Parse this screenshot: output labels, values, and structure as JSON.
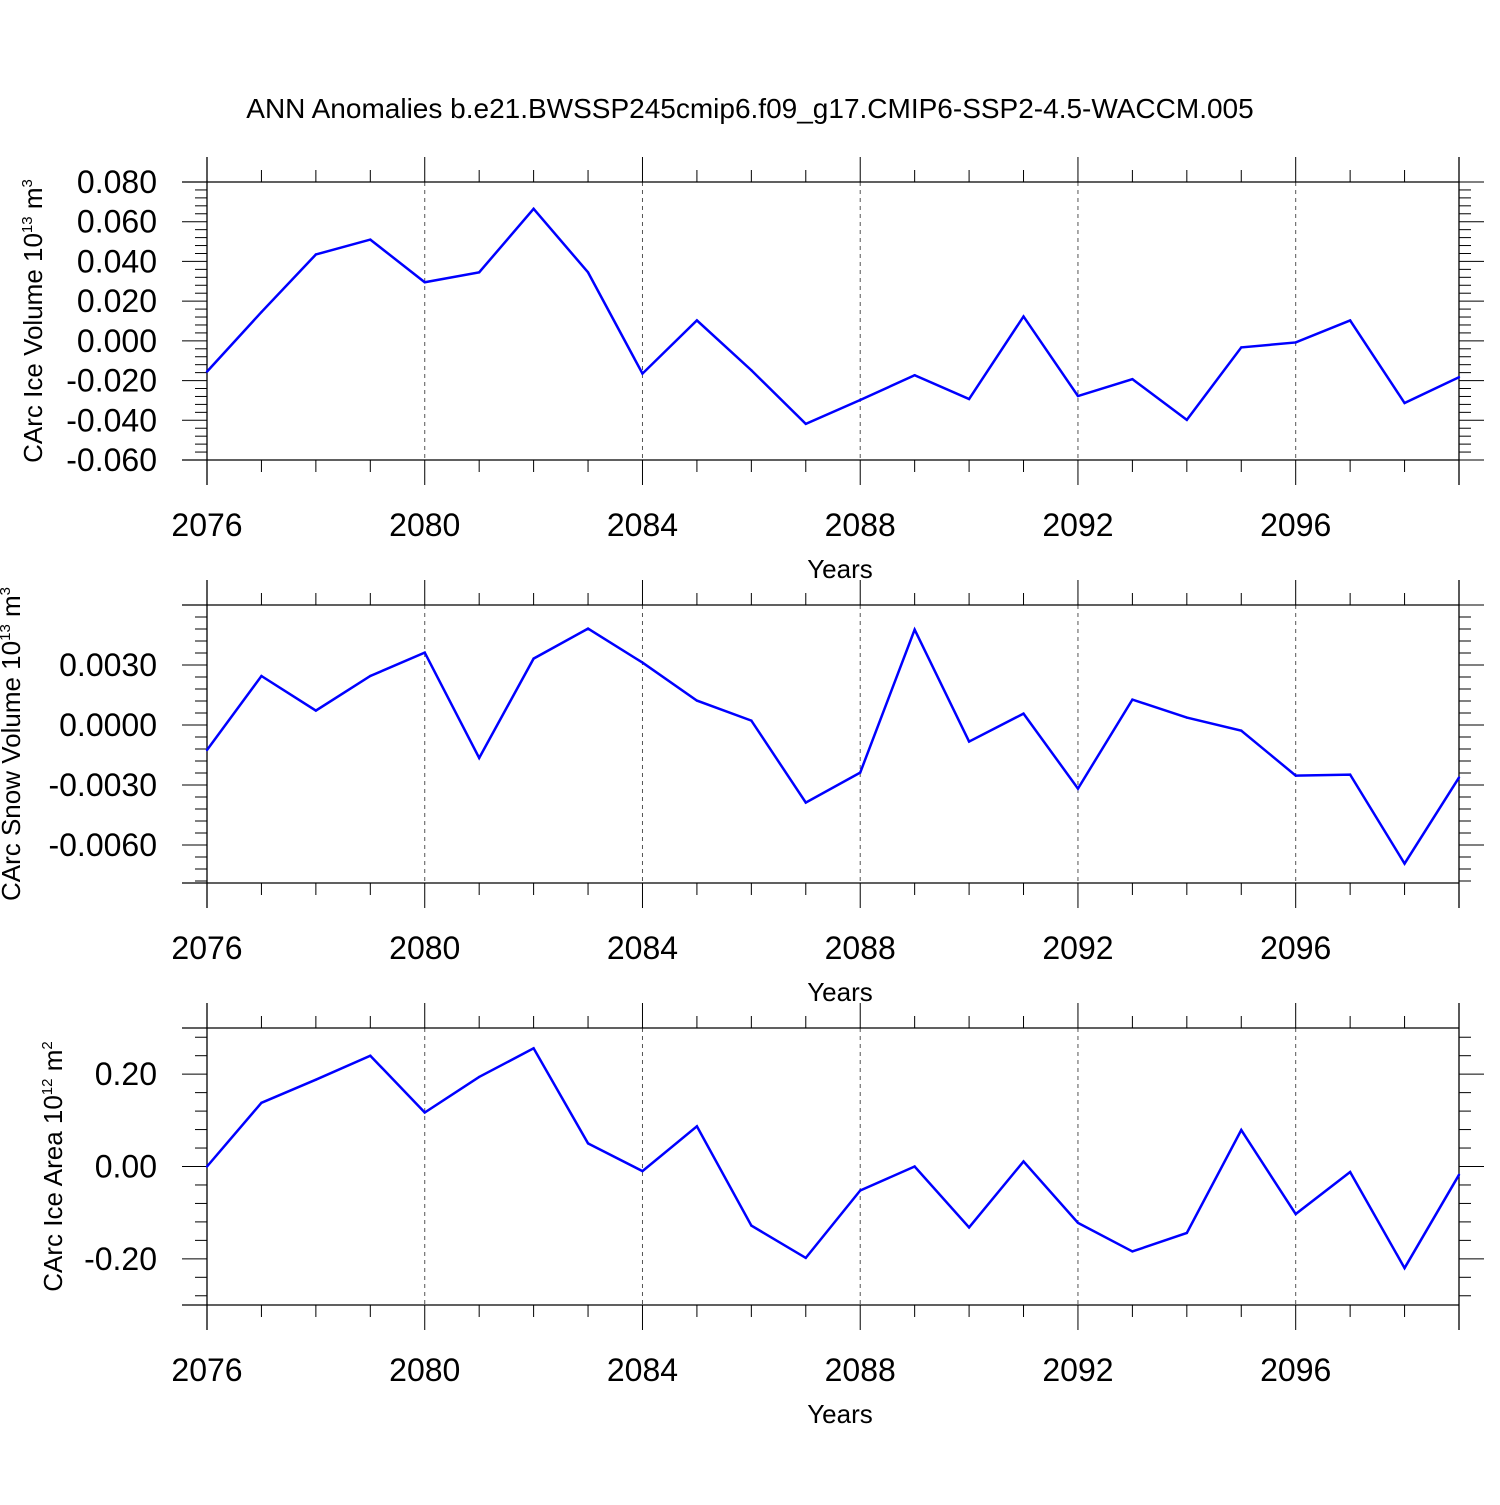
{
  "figure_title": "ANN Anomalies b.e21.BWSSP245cmip6.f09_g17.CMIP6-SSP2-4.5-WACCM.005",
  "colors": {
    "line": "#0000ff",
    "axis": "#000000",
    "grid": "#555555"
  },
  "chart_data": [
    {
      "type": "line",
      "title": "",
      "xlabel": "Years",
      "ylabel": {
        "main": "CArc Ice Volume 10",
        "sup": "13",
        "unit": " m",
        "unit_sup": "3"
      },
      "x": [
        2076,
        2077,
        2078,
        2079,
        2080,
        2081,
        2082,
        2083,
        2084,
        2085,
        2086,
        2087,
        2088,
        2089,
        2090,
        2091,
        2092,
        2093,
        2094,
        2095,
        2096,
        2097,
        2098,
        2099
      ],
      "values": [
        -0.0155,
        0.0145,
        0.0435,
        0.051,
        0.0295,
        0.0345,
        0.0665,
        0.0345,
        -0.0165,
        0.0103,
        -0.0148,
        -0.0418,
        -0.0298,
        -0.0173,
        -0.0293,
        0.0123,
        -0.0278,
        -0.0193,
        -0.0398,
        -0.0033,
        -0.0008,
        0.0103,
        -0.0313,
        -0.0183
      ],
      "xlim": [
        2076,
        2099
      ],
      "ylim": [
        -0.06,
        0.08
      ],
      "x_ticks": [
        2076,
        2080,
        2084,
        2088,
        2092,
        2096
      ],
      "x_tick_labels": [
        "2076",
        "2080",
        "2084",
        "2088",
        "2092",
        "2096"
      ],
      "y_ticks": [
        -0.06,
        -0.04,
        -0.02,
        0.0,
        0.02,
        0.04,
        0.06,
        0.08
      ],
      "y_tick_labels": [
        "-0.060",
        "-0.040",
        "-0.020",
        "0.000",
        "0.020",
        "0.040",
        "0.060",
        "0.080"
      ],
      "grid": "vertical dashed at major x ticks"
    },
    {
      "type": "line",
      "title": "",
      "xlabel": "Years",
      "ylabel": {
        "main": "CArc Snow Volume 10",
        "sup": "13",
        "unit": " m",
        "unit_sup": "3"
      },
      "x": [
        2076,
        2077,
        2078,
        2079,
        2080,
        2081,
        2082,
        2083,
        2084,
        2085,
        2086,
        2087,
        2088,
        2089,
        2090,
        2091,
        2092,
        2093,
        2094,
        2095,
        2096,
        2097,
        2098,
        2099
      ],
      "values": [
        -0.00125,
        0.00245,
        0.00072,
        0.00245,
        0.00362,
        -0.00165,
        0.00332,
        0.00482,
        0.00312,
        0.00122,
        0.00022,
        -0.00388,
        -0.00238,
        0.00477,
        -0.00083,
        0.00057,
        -0.00318,
        0.00127,
        0.00037,
        -0.00028,
        -0.00253,
        -0.00248,
        -0.00693,
        -0.00263
      ],
      "xlim": [
        2076,
        2099
      ],
      "ylim": [
        -0.0079,
        0.006
      ],
      "x_ticks": [
        2076,
        2080,
        2084,
        2088,
        2092,
        2096
      ],
      "x_tick_labels": [
        "2076",
        "2080",
        "2084",
        "2088",
        "2092",
        "2096"
      ],
      "y_ticks": [
        -0.006,
        -0.003,
        0.0,
        0.003
      ],
      "y_tick_labels": [
        "-0.0060",
        "-0.0030",
        "0.0000",
        "0.0030"
      ],
      "grid": "vertical dashed at major x ticks"
    },
    {
      "type": "line",
      "title": "",
      "xlabel": "Years",
      "ylabel": {
        "main": "CArc Ice Area 10",
        "sup": "12",
        "unit": " m",
        "unit_sup": "2"
      },
      "x": [
        2076,
        2077,
        2078,
        2079,
        2080,
        2081,
        2082,
        2083,
        2084,
        2085,
        2086,
        2087,
        2088,
        2089,
        2090,
        2091,
        2092,
        2093,
        2094,
        2095,
        2096,
        2097,
        2098,
        2099
      ],
      "values": [
        0.0,
        0.138,
        0.188,
        0.24,
        0.117,
        0.194,
        0.256,
        0.05,
        -0.01,
        0.087,
        -0.128,
        -0.198,
        -0.052,
        0.0,
        -0.132,
        0.011,
        -0.122,
        -0.184,
        -0.144,
        0.079,
        -0.103,
        -0.012,
        -0.22,
        -0.018
      ],
      "xlim": [
        2076,
        2099
      ],
      "ylim": [
        -0.3,
        0.3
      ],
      "x_ticks": [
        2076,
        2080,
        2084,
        2088,
        2092,
        2096
      ],
      "x_tick_labels": [
        "2076",
        "2080",
        "2084",
        "2088",
        "2092",
        "2096"
      ],
      "y_ticks": [
        -0.2,
        0.0,
        0.2
      ],
      "y_tick_labels": [
        "-0.20",
        "0.00",
        "0.20"
      ],
      "grid": "vertical dashed at major x ticks"
    }
  ]
}
